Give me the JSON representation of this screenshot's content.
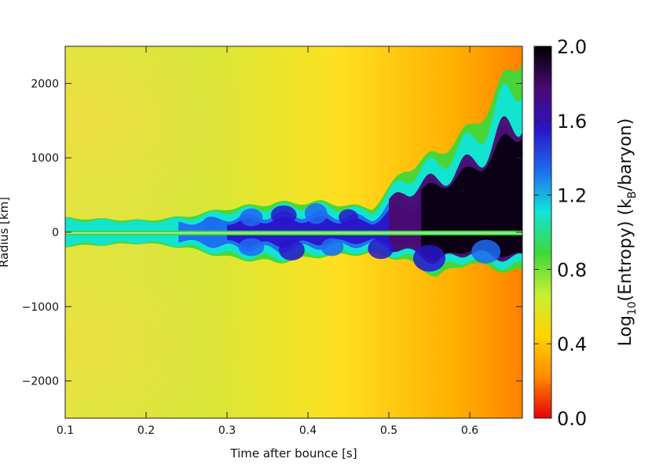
{
  "chart_data": {
    "type": "heatmap",
    "title": "",
    "xlabel": "Time after bounce [s]",
    "ylabel": "Radius [km]",
    "xlim": [
      0.1,
      0.665
    ],
    "ylim": [
      -2500,
      2500
    ],
    "xticks": [
      {
        "value": 0.1,
        "label": "0.1"
      },
      {
        "value": 0.2,
        "label": "0.2"
      },
      {
        "value": 0.3,
        "label": "0.3"
      },
      {
        "value": 0.4,
        "label": "0.4"
      },
      {
        "value": 0.5,
        "label": "0.5"
      },
      {
        "value": 0.6,
        "label": "0.6"
      }
    ],
    "yticks": [
      {
        "value": 2000,
        "label": "2000"
      },
      {
        "value": 1000,
        "label": "1000"
      },
      {
        "value": 0,
        "label": "0"
      },
      {
        "value": -1000,
        "label": "−1000"
      },
      {
        "value": -2000,
        "label": "−2000"
      }
    ],
    "colorbar": {
      "label": "Log",
      "label_sub": "10",
      "label_mid": "(Entropy)  (k",
      "label_sub2": "B",
      "label_end": "/baryon)",
      "range": [
        0.0,
        2.0
      ],
      "ticks": [
        {
          "value": 0.0,
          "label": "0.0"
        },
        {
          "value": 0.4,
          "label": "0.4"
        },
        {
          "value": 0.8,
          "label": "0.8"
        },
        {
          "value": 1.2,
          "label": "1.2"
        },
        {
          "value": 1.6,
          "label": "1.6"
        },
        {
          "value": 2.0,
          "label": "2.0"
        }
      ],
      "colormap": [
        "#e8000a",
        "#ff8a00",
        "#ffd400",
        "#c8ef34",
        "#3ed83a",
        "#10e5d8",
        "#1f6bf0",
        "#2a14c8",
        "#4a0a70",
        "#000000"
      ]
    },
    "shock_upper": [
      {
        "t": 0.1,
        "r": 180
      },
      {
        "t": 0.2,
        "r": 150
      },
      {
        "t": 0.25,
        "r": 200
      },
      {
        "t": 0.3,
        "r": 300
      },
      {
        "t": 0.36,
        "r": 370
      },
      {
        "t": 0.42,
        "r": 380
      },
      {
        "t": 0.48,
        "r": 300
      },
      {
        "t": 0.52,
        "r": 800
      },
      {
        "t": 0.56,
        "r": 1000
      },
      {
        "t": 0.6,
        "r": 1300
      },
      {
        "t": 0.63,
        "r": 1700
      },
      {
        "t": 0.665,
        "r": 2300
      }
    ],
    "shock_lower": [
      {
        "t": 0.1,
        "r": -180
      },
      {
        "t": 0.2,
        "r": -140
      },
      {
        "t": 0.25,
        "r": -200
      },
      {
        "t": 0.3,
        "r": -320
      },
      {
        "t": 0.36,
        "r": -380
      },
      {
        "t": 0.42,
        "r": -300
      },
      {
        "t": 0.48,
        "r": -270
      },
      {
        "t": 0.52,
        "r": -350
      },
      {
        "t": 0.56,
        "r": -560
      },
      {
        "t": 0.6,
        "r": -380
      },
      {
        "t": 0.63,
        "r": -470
      },
      {
        "t": 0.665,
        "r": -500
      }
    ]
  }
}
